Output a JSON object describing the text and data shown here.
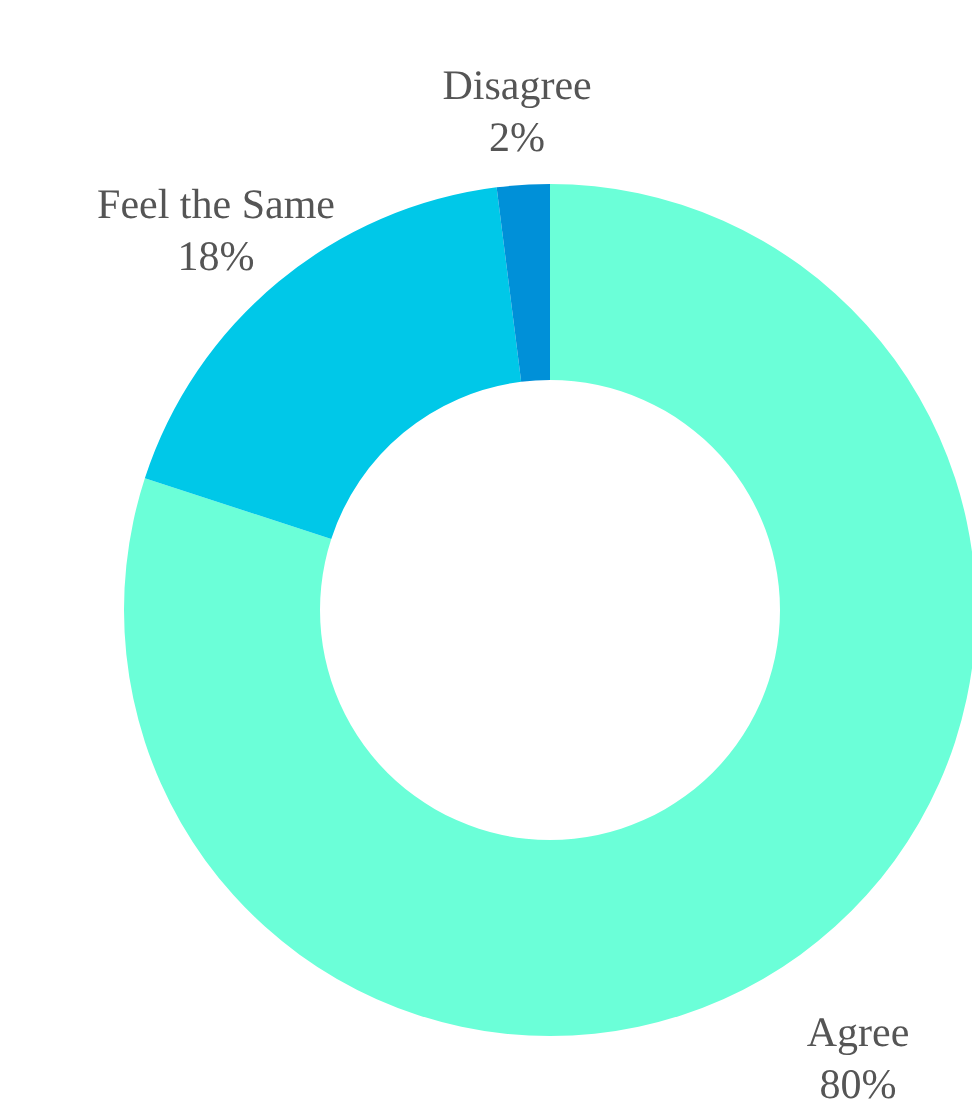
{
  "chart_data": {
    "type": "donut",
    "categories": [
      "Agree",
      "Feel the Same",
      "Disagree"
    ],
    "values": [
      80,
      18,
      2
    ],
    "value_labels": [
      "80%",
      "18%",
      "2%"
    ],
    "colors": [
      "#6bffd8",
      "#00c8e8",
      "#0090d8"
    ],
    "legend": false
  }
}
